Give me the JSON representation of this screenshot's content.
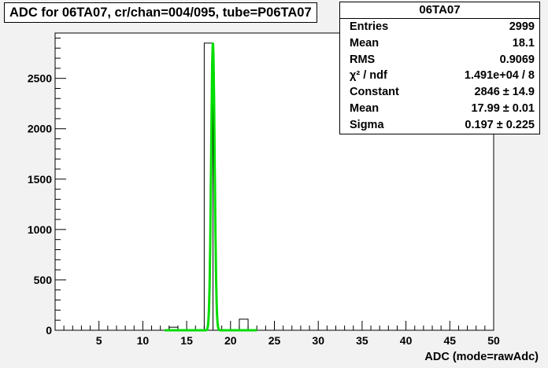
{
  "title": "ADC for 06TA07,  cr/chan=004/095,  tube=P06TA07",
  "stats": {
    "name": "06TA07",
    "rows": [
      {
        "label": "Entries",
        "value": "2999"
      },
      {
        "label": "Mean",
        "value": "18.1"
      },
      {
        "label": "RMS",
        "value": "0.9069"
      },
      {
        "label": "χ² / ndf",
        "value": "1.491e+04 / 8"
      },
      {
        "label": "Constant",
        "value": "2846 ± 14.9"
      },
      {
        "label": "Mean",
        "value": "17.99 ± 0.01"
      },
      {
        "label": "Sigma",
        "value": "0.197 ± 0.225"
      }
    ]
  },
  "chart_data": {
    "type": "bar",
    "title": "ADC for 06TA07,  cr/chan=004/095,  tube=P06TA07",
    "xlabel": "ADC (mode=rawAdc)",
    "ylabel": "",
    "xlim": [
      0,
      50
    ],
    "ylim": [
      0,
      2950
    ],
    "x_ticks": [
      "5",
      "10",
      "15",
      "20",
      "25",
      "30",
      "35",
      "40",
      "45",
      "50"
    ],
    "y_ticks": [
      "0",
      "500",
      "1000",
      "1500",
      "2000",
      "2500"
    ],
    "bins": [
      {
        "x0": 13,
        "x1": 14,
        "value": 30
      },
      {
        "x0": 17,
        "x1": 18,
        "value": 2850
      },
      {
        "x0": 21,
        "x1": 22,
        "value": 110
      }
    ],
    "fit": {
      "type": "gaussian",
      "constant": 2846,
      "mean": 17.99,
      "sigma": 0.197,
      "range": [
        12.5,
        23
      ],
      "color": "#00dd00"
    },
    "grid": false,
    "legend": "top-right"
  }
}
